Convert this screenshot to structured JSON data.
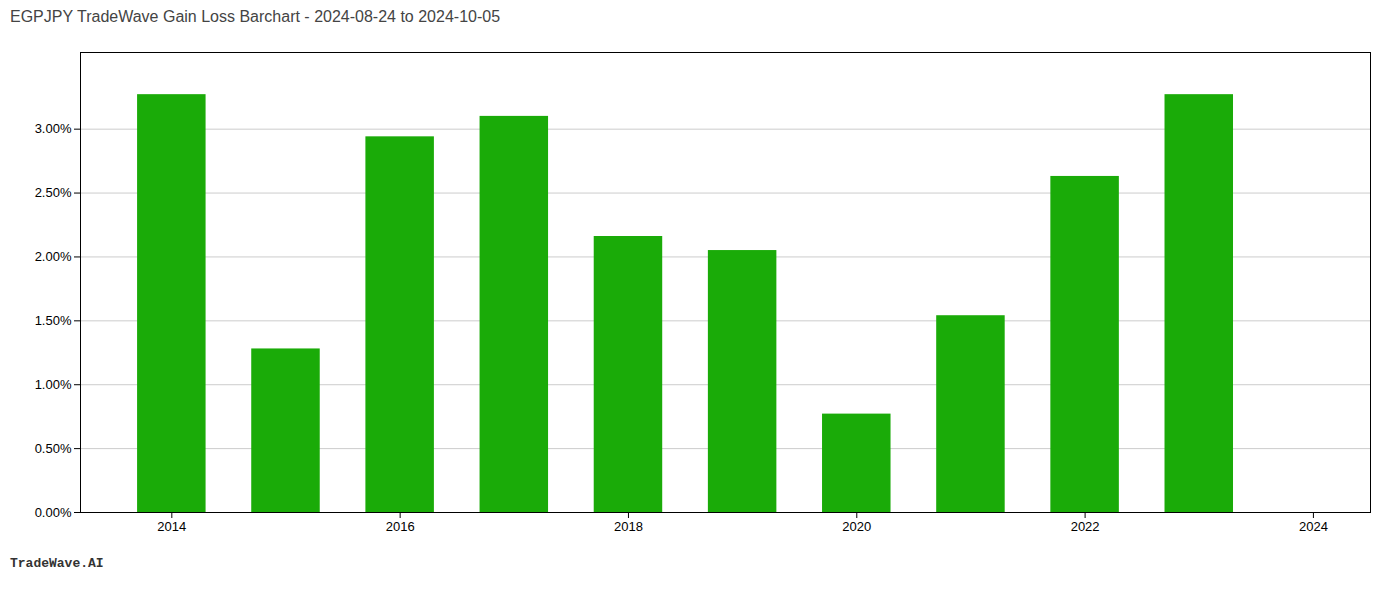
{
  "chart_data": {
    "type": "bar",
    "title": "EGPJPY TradeWave Gain Loss Barchart - 2024-08-24 to 2024-10-05",
    "annotations": [
      "TradeWave.AI"
    ],
    "x": [
      2014,
      2015,
      2016,
      2017,
      2018,
      2019,
      2020,
      2021,
      2022,
      2023
    ],
    "values": [
      0.0327,
      0.0128,
      0.0294,
      0.031,
      0.0216,
      0.0205,
      0.0077,
      0.0154,
      0.0263,
      0.0327
    ],
    "color": "#1aab08",
    "xlim": [
      2013.2,
      2024.5
    ],
    "xticks": [
      2014,
      2016,
      2018,
      2020,
      2022,
      2024
    ],
    "ylim": [
      0,
      0.036
    ],
    "yticks": [
      {
        "value": 0,
        "label": "0.00%"
      },
      {
        "value": 0.005,
        "label": "0.50%"
      },
      {
        "value": 0.01,
        "label": "1.00%"
      },
      {
        "value": 0.015,
        "label": "1.50%"
      },
      {
        "value": 0.02,
        "label": "2.00%"
      },
      {
        "value": 0.025,
        "label": "2.50%"
      },
      {
        "value": 0.03,
        "label": "3.00%"
      }
    ],
    "grid": true
  }
}
